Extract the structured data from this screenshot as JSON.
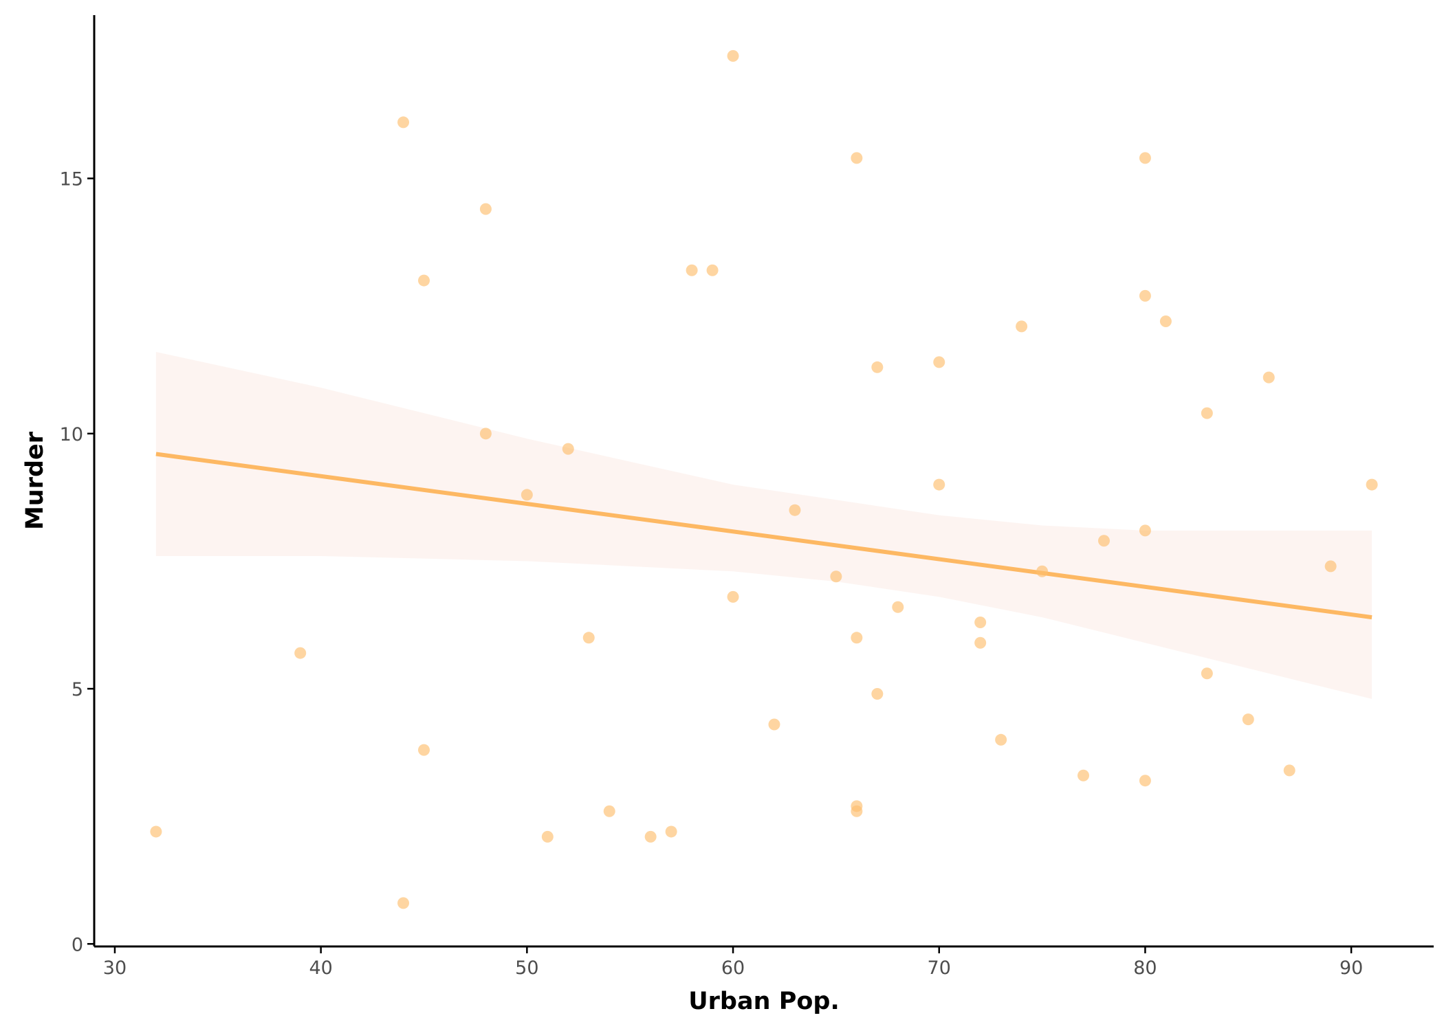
{
  "chart_data": {
    "type": "scatter",
    "title": "",
    "xlabel": "Urban Pop.",
    "ylabel": "Murder",
    "xlim": [
      29,
      94
    ],
    "ylim": [
      -0.05,
      18.2
    ],
    "x_ticks": [
      30,
      40,
      50,
      60,
      70,
      80,
      90
    ],
    "y_ticks": [
      0,
      5,
      10,
      15
    ],
    "grid": false,
    "legend": "none",
    "colors": {
      "points": "#fdbf6f",
      "line": "#fdb863",
      "band": "#fbe6e0",
      "axis": "#000000",
      "tick_text": "#4d4d4d"
    },
    "points": [
      {
        "x": 58,
        "y": 13.2
      },
      {
        "x": 48,
        "y": 10.0
      },
      {
        "x": 80,
        "y": 8.1
      },
      {
        "x": 50,
        "y": 8.8
      },
      {
        "x": 91,
        "y": 9.0
      },
      {
        "x": 78,
        "y": 7.9
      },
      {
        "x": 77,
        "y": 3.3
      },
      {
        "x": 72,
        "y": 5.9
      },
      {
        "x": 80,
        "y": 15.4
      },
      {
        "x": 60,
        "y": 17.4
      },
      {
        "x": 83,
        "y": 5.3
      },
      {
        "x": 54,
        "y": 2.6
      },
      {
        "x": 83,
        "y": 10.4
      },
      {
        "x": 65,
        "y": 7.2
      },
      {
        "x": 57,
        "y": 2.2
      },
      {
        "x": 66,
        "y": 6.0
      },
      {
        "x": 52,
        "y": 9.7
      },
      {
        "x": 66,
        "y": 15.4
      },
      {
        "x": 51,
        "y": 2.1
      },
      {
        "x": 67,
        "y": 11.3
      },
      {
        "x": 85,
        "y": 4.4
      },
      {
        "x": 74,
        "y": 12.1
      },
      {
        "x": 66,
        "y": 2.7
      },
      {
        "x": 44,
        "y": 16.1
      },
      {
        "x": 70,
        "y": 9.0
      },
      {
        "x": 53,
        "y": 6.0
      },
      {
        "x": 62,
        "y": 4.3
      },
      {
        "x": 81,
        "y": 12.2
      },
      {
        "x": 56,
        "y": 2.1
      },
      {
        "x": 89,
        "y": 7.4
      },
      {
        "x": 70,
        "y": 11.4
      },
      {
        "x": 86,
        "y": 11.1
      },
      {
        "x": 45,
        "y": 13.0
      },
      {
        "x": 44,
        "y": 0.8
      },
      {
        "x": 75,
        "y": 7.3
      },
      {
        "x": 68,
        "y": 6.6
      },
      {
        "x": 67,
        "y": 4.9
      },
      {
        "x": 72,
        "y": 6.3
      },
      {
        "x": 87,
        "y": 3.4
      },
      {
        "x": 48,
        "y": 14.4
      },
      {
        "x": 45,
        "y": 3.8
      },
      {
        "x": 59,
        "y": 13.2
      },
      {
        "x": 80,
        "y": 12.7
      },
      {
        "x": 80,
        "y": 3.2
      },
      {
        "x": 32,
        "y": 2.2
      },
      {
        "x": 63,
        "y": 8.5
      },
      {
        "x": 73,
        "y": 4.0
      },
      {
        "x": 39,
        "y": 5.7
      },
      {
        "x": 66,
        "y": 2.6
      },
      {
        "x": 60,
        "y": 6.8
      }
    ],
    "fit_line": {
      "method": "linear regression",
      "x": [
        32,
        91
      ],
      "y": [
        9.6,
        6.4
      ]
    },
    "confidence_band": {
      "x": [
        32,
        40,
        50,
        60,
        65,
        70,
        75,
        80,
        85,
        91
      ],
      "upper": [
        11.6,
        10.9,
        9.9,
        9.0,
        8.7,
        8.4,
        8.2,
        8.1,
        8.1,
        8.1
      ],
      "lower": [
        7.6,
        7.6,
        7.5,
        7.3,
        7.1,
        6.8,
        6.4,
        5.9,
        5.4,
        4.8
      ]
    }
  }
}
